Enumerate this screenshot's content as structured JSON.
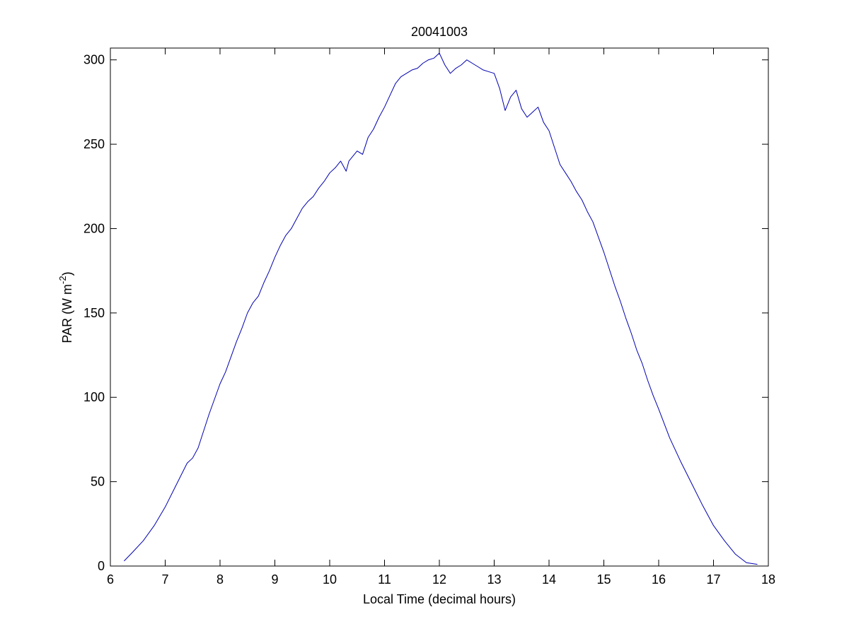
{
  "chart_data": {
    "type": "line",
    "title": "20041003",
    "xlabel": "Local Time (decimal hours)",
    "ylabel": {
      "prefix": "PAR (W m",
      "superscript": "-2",
      "suffix": ")"
    },
    "xlim": [
      6,
      18
    ],
    "ylim": [
      0,
      307
    ],
    "xticks": [
      6,
      7,
      8,
      9,
      10,
      11,
      12,
      13,
      14,
      15,
      16,
      17,
      18
    ],
    "yticks": [
      0,
      50,
      100,
      150,
      200,
      250,
      300
    ],
    "grid": false,
    "line_color": "#0000b0",
    "series": [
      {
        "x": [
          6.25,
          6.4,
          6.6,
          6.8,
          7.0,
          7.2,
          7.4,
          7.5,
          7.6,
          7.7,
          7.8,
          8.0,
          8.1,
          8.2,
          8.3,
          8.4,
          8.5,
          8.6,
          8.7,
          8.8,
          8.9,
          9.0,
          9.1,
          9.2,
          9.3,
          9.4,
          9.5,
          9.6,
          9.7,
          9.8,
          9.9,
          10.0,
          10.1,
          10.2,
          10.3,
          10.35,
          10.5,
          10.6,
          10.7,
          10.8,
          10.9,
          11.0,
          11.1,
          11.2,
          11.3,
          11.4,
          11.5,
          11.6,
          11.7,
          11.8,
          11.9,
          12.0,
          12.1,
          12.2,
          12.3,
          12.4,
          12.5,
          12.6,
          12.7,
          12.8,
          12.9,
          13.0,
          13.1,
          13.2,
          13.3,
          13.4,
          13.5,
          13.6,
          13.7,
          13.8,
          13.9,
          14.0,
          14.1,
          14.2,
          14.3,
          14.4,
          14.5,
          14.6,
          14.7,
          14.8,
          14.9,
          15.0,
          15.1,
          15.2,
          15.3,
          15.4,
          15.5,
          15.6,
          15.7,
          15.8,
          15.9,
          16.0,
          16.2,
          16.4,
          16.6,
          16.8,
          17.0,
          17.2,
          17.4,
          17.6,
          17.8
        ],
        "y": [
          3,
          8,
          15,
          24,
          35,
          48,
          61,
          64,
          70,
          80,
          90,
          108,
          115,
          124,
          133,
          141,
          150,
          156,
          160,
          168,
          175,
          183,
          190,
          196,
          200,
          206,
          212,
          216,
          219,
          224,
          228,
          233,
          236,
          240,
          234,
          240,
          246,
          244,
          254,
          259,
          266,
          272,
          279,
          286,
          290,
          292,
          294,
          295,
          298,
          300,
          301,
          304,
          297,
          292,
          295,
          297,
          300,
          298,
          296,
          294,
          293,
          292,
          283,
          270,
          278,
          282,
          271,
          266,
          269,
          272,
          263,
          258,
          248,
          238,
          233,
          228,
          222,
          217,
          210,
          204,
          195,
          186,
          176,
          166,
          157,
          147,
          138,
          128,
          120,
          110,
          101,
          93,
          76,
          62,
          49,
          36,
          24,
          15,
          7,
          2,
          1
        ]
      }
    ]
  }
}
